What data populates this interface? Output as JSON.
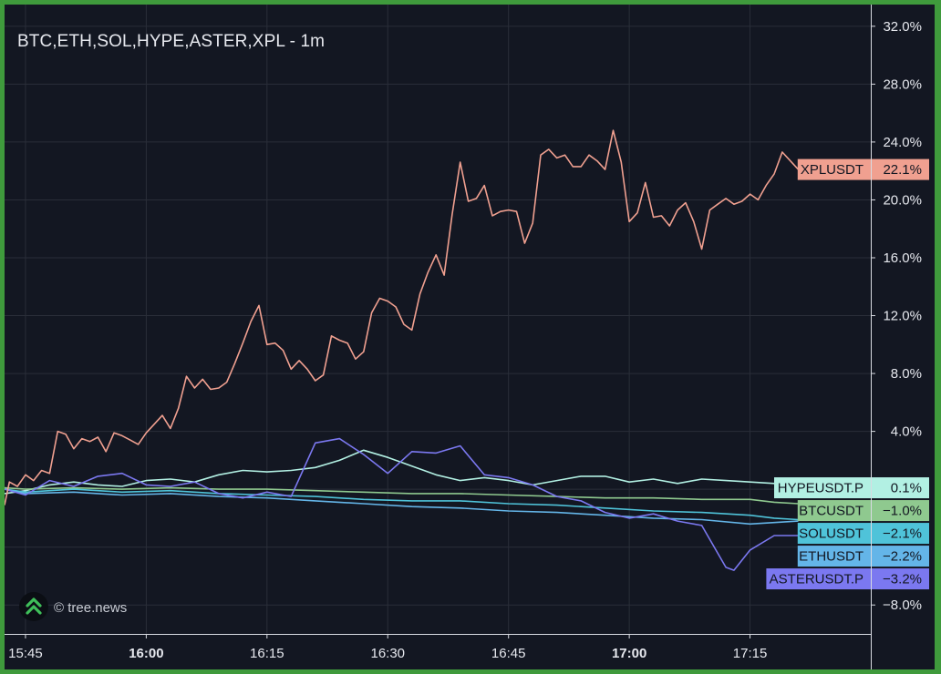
{
  "title": "BTC,ETH,SOL,HYPE,ASTER,XPL - 1m",
  "watermark": "© tree.news",
  "watermark_icon": "tree-news-logo-icon",
  "colors": {
    "background": "#131722",
    "frame": "#3f9a3c",
    "grid": "#2a2e39",
    "axis_text": "#e6e8ee"
  },
  "chart_data": {
    "type": "line",
    "x_axis": {
      "ticks": [
        {
          "label": "15:45",
          "minute": 0,
          "bold": false
        },
        {
          "label": "16:00",
          "minute": 15,
          "bold": true
        },
        {
          "label": "16:15",
          "minute": 30,
          "bold": false
        },
        {
          "label": "16:30",
          "minute": 45,
          "bold": false
        },
        {
          "label": "16:45",
          "minute": 60,
          "bold": false
        },
        {
          "label": "17:00",
          "minute": 75,
          "bold": true
        },
        {
          "label": "17:15",
          "minute": 90,
          "bold": false
        }
      ],
      "range": [
        -2.6,
        105
      ]
    },
    "y_axis": {
      "unit": "%",
      "range": [
        -10,
        33.5
      ],
      "ticks": [
        {
          "value": 32,
          "label": "32.0%"
        },
        {
          "value": 28,
          "label": "28.0%"
        },
        {
          "value": 24,
          "label": "24.0%"
        },
        {
          "value": 20,
          "label": "20.0%"
        },
        {
          "value": 16,
          "label": "16.0%"
        },
        {
          "value": 12,
          "label": "12.0%"
        },
        {
          "value": 8,
          "label": "8.0%"
        },
        {
          "value": 4,
          "label": "4.0%"
        },
        {
          "value": -8,
          "label": "−8.0%"
        }
      ]
    },
    "grid": true,
    "series": [
      {
        "name": "HYPEUSDT.P",
        "color": "#b2f0e3",
        "last_label": "0.1%",
        "points": [
          [
            -2.6,
            -0.3
          ],
          [
            0,
            -0.1
          ],
          [
            3,
            0.3
          ],
          [
            6,
            0.5
          ],
          [
            9,
            0.3
          ],
          [
            12,
            0.2
          ],
          [
            15,
            0.6
          ],
          [
            18,
            0.7
          ],
          [
            21,
            0.5
          ],
          [
            24,
            1.0
          ],
          [
            27,
            1.3
          ],
          [
            30,
            1.2
          ],
          [
            33,
            1.3
          ],
          [
            36,
            1.5
          ],
          [
            39,
            2.0
          ],
          [
            42,
            2.7
          ],
          [
            45,
            2.2
          ],
          [
            48,
            1.6
          ],
          [
            51,
            1.0
          ],
          [
            54,
            0.6
          ],
          [
            57,
            0.8
          ],
          [
            60,
            0.6
          ],
          [
            63,
            0.3
          ],
          [
            66,
            0.6
          ],
          [
            69,
            0.9
          ],
          [
            72,
            0.9
          ],
          [
            75,
            0.5
          ],
          [
            78,
            0.7
          ],
          [
            81,
            0.4
          ],
          [
            84,
            0.7
          ],
          [
            87,
            0.6
          ],
          [
            90,
            0.5
          ],
          [
            93,
            0.4
          ],
          [
            96,
            0.1
          ]
        ]
      },
      {
        "name": "BTCUSDT",
        "color": "#8fc98f",
        "last_label": "−1.0%",
        "points": [
          [
            -2.6,
            0.1
          ],
          [
            0,
            0.0
          ],
          [
            6,
            0.1
          ],
          [
            12,
            0.0
          ],
          [
            18,
            0.1
          ],
          [
            24,
            0.0
          ],
          [
            30,
            0.0
          ],
          [
            36,
            -0.1
          ],
          [
            42,
            -0.2
          ],
          [
            48,
            -0.3
          ],
          [
            54,
            -0.3
          ],
          [
            60,
            -0.4
          ],
          [
            66,
            -0.5
          ],
          [
            72,
            -0.6
          ],
          [
            78,
            -0.6
          ],
          [
            84,
            -0.7
          ],
          [
            90,
            -0.7
          ],
          [
            93,
            -0.9
          ],
          [
            96,
            -1.0
          ]
        ]
      },
      {
        "name": "SOLUSDT",
        "color": "#4fc3d9",
        "last_label": "−2.1%",
        "points": [
          [
            -2.6,
            0.0
          ],
          [
            0,
            -0.2
          ],
          [
            6,
            0.0
          ],
          [
            12,
            -0.2
          ],
          [
            18,
            -0.1
          ],
          [
            24,
            -0.3
          ],
          [
            30,
            -0.4
          ],
          [
            36,
            -0.5
          ],
          [
            42,
            -0.7
          ],
          [
            48,
            -0.8
          ],
          [
            54,
            -0.8
          ],
          [
            60,
            -1.0
          ],
          [
            66,
            -1.1
          ],
          [
            72,
            -1.3
          ],
          [
            78,
            -1.5
          ],
          [
            84,
            -1.6
          ],
          [
            90,
            -1.8
          ],
          [
            93,
            -2.0
          ],
          [
            96,
            -2.1
          ]
        ]
      },
      {
        "name": "ETHUSDT",
        "color": "#64b5e8",
        "last_label": "−2.2%",
        "points": [
          [
            -2.6,
            0.0
          ],
          [
            0,
            -0.3
          ],
          [
            6,
            -0.2
          ],
          [
            12,
            -0.4
          ],
          [
            18,
            -0.3
          ],
          [
            24,
            -0.5
          ],
          [
            30,
            -0.6
          ],
          [
            36,
            -0.8
          ],
          [
            42,
            -1.0
          ],
          [
            48,
            -1.2
          ],
          [
            54,
            -1.3
          ],
          [
            60,
            -1.5
          ],
          [
            66,
            -1.6
          ],
          [
            72,
            -1.8
          ],
          [
            78,
            -2.0
          ],
          [
            84,
            -2.1
          ],
          [
            90,
            -2.4
          ],
          [
            93,
            -2.3
          ],
          [
            96,
            -2.2
          ]
        ]
      },
      {
        "name": "ASTERUSDT.P",
        "color": "#7b78f0",
        "last_label": "−3.2%",
        "points": [
          [
            -2.6,
            0.0
          ],
          [
            0,
            -0.4
          ],
          [
            3,
            0.6
          ],
          [
            6,
            0.2
          ],
          [
            9,
            0.9
          ],
          [
            12,
            1.1
          ],
          [
            15,
            0.3
          ],
          [
            18,
            0.2
          ],
          [
            21,
            0.5
          ],
          [
            24,
            -0.3
          ],
          [
            27,
            -0.6
          ],
          [
            30,
            -0.2
          ],
          [
            33,
            -0.5
          ],
          [
            36,
            3.2
          ],
          [
            39,
            3.5
          ],
          [
            42,
            2.4
          ],
          [
            45,
            1.1
          ],
          [
            48,
            2.6
          ],
          [
            51,
            2.5
          ],
          [
            54,
            3.0
          ],
          [
            57,
            1.0
          ],
          [
            60,
            0.8
          ],
          [
            63,
            0.3
          ],
          [
            66,
            -0.5
          ],
          [
            69,
            -0.8
          ],
          [
            72,
            -1.6
          ],
          [
            75,
            -2.0
          ],
          [
            78,
            -1.7
          ],
          [
            81,
            -2.2
          ],
          [
            84,
            -2.5
          ],
          [
            87,
            -5.4
          ],
          [
            88,
            -5.6
          ],
          [
            90,
            -4.2
          ],
          [
            93,
            -3.2
          ],
          [
            96,
            -3.2
          ]
        ]
      },
      {
        "name": "XPLUSDT",
        "color": "#f0a090",
        "last_label": "22.1%",
        "points": [
          [
            -2.6,
            -1.1
          ],
          [
            -2,
            0.5
          ],
          [
            -1,
            0.2
          ],
          [
            0,
            1.0
          ],
          [
            1,
            0.6
          ],
          [
            2,
            1.3
          ],
          [
            3,
            1.1
          ],
          [
            4,
            4.0
          ],
          [
            5,
            3.8
          ],
          [
            6,
            2.8
          ],
          [
            7,
            3.5
          ],
          [
            8,
            3.3
          ],
          [
            9,
            3.6
          ],
          [
            10,
            2.6
          ],
          [
            11,
            3.9
          ],
          [
            12,
            3.7
          ],
          [
            13,
            3.4
          ],
          [
            14,
            3.1
          ],
          [
            15,
            3.9
          ],
          [
            16,
            4.5
          ],
          [
            17,
            5.1
          ],
          [
            18,
            4.2
          ],
          [
            19,
            5.6
          ],
          [
            20,
            7.8
          ],
          [
            21,
            7.0
          ],
          [
            22,
            7.6
          ],
          [
            23,
            6.9
          ],
          [
            24,
            7.0
          ],
          [
            25,
            7.4
          ],
          [
            26,
            8.7
          ],
          [
            27,
            10.1
          ],
          [
            28,
            11.6
          ],
          [
            29,
            12.7
          ],
          [
            30,
            10.0
          ],
          [
            31,
            10.1
          ],
          [
            32,
            9.6
          ],
          [
            33,
            8.3
          ],
          [
            34,
            8.9
          ],
          [
            35,
            8.3
          ],
          [
            36,
            7.5
          ],
          [
            37,
            7.9
          ],
          [
            38,
            10.6
          ],
          [
            39,
            10.3
          ],
          [
            40,
            10.1
          ],
          [
            41,
            9.0
          ],
          [
            42,
            9.5
          ],
          [
            43,
            12.2
          ],
          [
            44,
            13.2
          ],
          [
            45,
            13.0
          ],
          [
            46,
            12.6
          ],
          [
            47,
            11.4
          ],
          [
            48,
            11.0
          ],
          [
            49,
            13.5
          ],
          [
            50,
            15.0
          ],
          [
            51,
            16.2
          ],
          [
            52,
            14.8
          ],
          [
            53,
            19.0
          ],
          [
            54,
            22.6
          ],
          [
            55,
            19.9
          ],
          [
            56,
            20.1
          ],
          [
            57,
            21.0
          ],
          [
            58,
            18.9
          ],
          [
            59,
            19.2
          ],
          [
            60,
            19.3
          ],
          [
            61,
            19.2
          ],
          [
            62,
            17.0
          ],
          [
            63,
            18.4
          ],
          [
            64,
            23.1
          ],
          [
            65,
            23.5
          ],
          [
            66,
            22.9
          ],
          [
            67,
            23.1
          ],
          [
            68,
            22.3
          ],
          [
            69,
            22.3
          ],
          [
            70,
            23.1
          ],
          [
            71,
            22.7
          ],
          [
            72,
            22.1
          ],
          [
            73,
            24.8
          ],
          [
            74,
            22.6
          ],
          [
            75,
            18.5
          ],
          [
            76,
            19.1
          ],
          [
            77,
            21.2
          ],
          [
            78,
            18.8
          ],
          [
            79,
            18.9
          ],
          [
            80,
            18.2
          ],
          [
            81,
            19.3
          ],
          [
            82,
            19.8
          ],
          [
            83,
            18.5
          ],
          [
            84,
            16.6
          ],
          [
            85,
            19.3
          ],
          [
            86,
            19.7
          ],
          [
            87,
            20.1
          ],
          [
            88,
            19.7
          ],
          [
            89,
            19.9
          ],
          [
            90,
            20.4
          ],
          [
            91,
            20.0
          ],
          [
            92,
            21.0
          ],
          [
            93,
            21.8
          ],
          [
            94,
            23.3
          ],
          [
            96,
            22.1
          ]
        ]
      }
    ]
  }
}
